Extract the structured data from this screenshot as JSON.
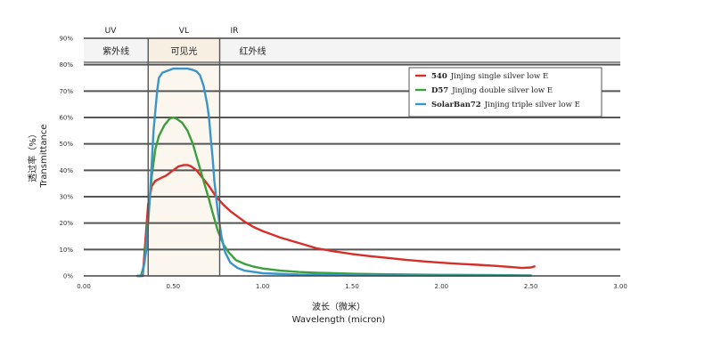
{
  "chart_data": {
    "type": "line",
    "xlabel_cn": "波长（微米）",
    "xlabel_en": "Wavelength  (micron)",
    "ylabel_cn": "透过率（%）",
    "ylabel_en": "Transmittance",
    "xlim": [
      0,
      3
    ],
    "ylim": [
      0,
      90
    ],
    "xticks": [
      0,
      0.5,
      1.0,
      1.5,
      2.0,
      2.5,
      3.0
    ],
    "xtick_labels": [
      "0.00",
      "0.50",
      "1.00",
      "1.50",
      "2.00",
      "2.50",
      "3.00"
    ],
    "yticks": [
      0,
      10,
      20,
      30,
      40,
      50,
      60,
      70,
      80,
      90
    ],
    "ytick_labels": [
      "0%",
      "10%",
      "20%",
      "30%",
      "40%",
      "50%",
      "60%",
      "70%",
      "80%",
      "90%"
    ],
    "grid": "horizontal",
    "bands": [
      {
        "code": "UV",
        "name": "紫外线",
        "from": 0.0,
        "to": 0.36
      },
      {
        "code": "VL",
        "name": "可见光",
        "from": 0.36,
        "to": 0.76
      },
      {
        "code": "IR",
        "name": "红外线",
        "from": 0.76,
        "to": 3.0
      }
    ],
    "legend_position": "top-right",
    "series": [
      {
        "name": "540",
        "label": "Jinjing single silver low E",
        "color": "#d62f2a",
        "x": [
          0.3,
          0.33,
          0.35,
          0.36,
          0.38,
          0.4,
          0.43,
          0.46,
          0.5,
          0.53,
          0.56,
          0.58,
          0.6,
          0.63,
          0.66,
          0.7,
          0.74,
          0.78,
          0.82,
          0.86,
          0.9,
          0.95,
          1.0,
          1.1,
          1.2,
          1.3,
          1.4,
          1.5,
          1.6,
          1.7,
          1.8,
          1.9,
          2.0,
          2.1,
          2.2,
          2.3,
          2.4,
          2.45,
          2.5,
          2.52
        ],
        "y": [
          0,
          0,
          18,
          27,
          34,
          36,
          37,
          38,
          40,
          41.5,
          42,
          42,
          41.5,
          40,
          37.5,
          34,
          30,
          27,
          24.5,
          22.5,
          20.5,
          18.5,
          17,
          14.5,
          12.5,
          10.5,
          9.3,
          8.3,
          7.5,
          6.8,
          6.1,
          5.5,
          5.0,
          4.6,
          4.2,
          3.8,
          3.3,
          3.0,
          3.2,
          3.6
        ]
      },
      {
        "name": "D57",
        "label": "Jinjing double silver low E",
        "color": "#3d9e3d",
        "x": [
          0.3,
          0.32,
          0.34,
          0.36,
          0.38,
          0.4,
          0.42,
          0.45,
          0.48,
          0.5,
          0.52,
          0.55,
          0.58,
          0.61,
          0.64,
          0.67,
          0.7,
          0.72,
          0.75,
          0.78,
          0.81,
          0.85,
          0.9,
          0.95,
          1.0,
          1.1,
          1.2,
          1.3,
          1.4,
          1.5,
          1.7,
          2.0,
          2.3,
          2.5
        ],
        "y": [
          0,
          0,
          5,
          22,
          38,
          48,
          53,
          57,
          59.5,
          60,
          59.5,
          58,
          55,
          50,
          43,
          36,
          29,
          24,
          17,
          12,
          9,
          6,
          4.5,
          3.5,
          2.8,
          2.0,
          1.5,
          1.2,
          1.0,
          0.8,
          0.6,
          0.4,
          0.3,
          0.2
        ]
      },
      {
        "name": "SolarBan72",
        "label": "Jinjing triple silver low E",
        "color": "#3a96c8",
        "x": [
          0.3,
          0.32,
          0.33,
          0.35,
          0.37,
          0.39,
          0.41,
          0.42,
          0.44,
          0.46,
          0.48,
          0.5,
          0.52,
          0.55,
          0.58,
          0.61,
          0.63,
          0.65,
          0.67,
          0.69,
          0.7,
          0.71,
          0.72,
          0.73,
          0.75,
          0.77,
          0.79,
          0.82,
          0.86,
          0.9,
          1.0,
          1.2,
          1.5,
          2.0,
          2.5
        ],
        "y": [
          0,
          0,
          1,
          10,
          30,
          55,
          70,
          75,
          77,
          77.5,
          78,
          78.5,
          78.5,
          78.5,
          78.5,
          78,
          77.5,
          76,
          72,
          65,
          60,
          52,
          45,
          36,
          24,
          15,
          9,
          5,
          3,
          2,
          1,
          0.5,
          0.2,
          0.1,
          0.1
        ]
      }
    ]
  }
}
